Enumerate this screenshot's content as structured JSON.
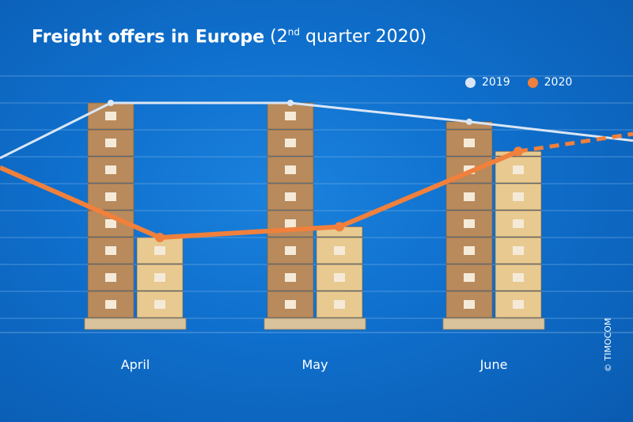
{
  "title": {
    "main": "Freight offers in Europe",
    "sub_prefix": " (2",
    "sub_sup": "nd",
    "sub_suffix": " quarter 2020)"
  },
  "copyright": "© TIMOCOM",
  "colors": {
    "series_2019": "#dbe6f4",
    "series_2020": "#f0803c",
    "box_2019": "#b88a5c",
    "box_2020": "#e8c98f",
    "grid": "#7fb2e6"
  },
  "chart_data": {
    "type": "line",
    "categories": [
      "April",
      "May",
      "June"
    ],
    "grid": true,
    "legend_position": "top-right",
    "series": [
      {
        "name": "2019",
        "values": [
          8,
          8,
          7.3
        ]
      },
      {
        "name": "2020",
        "values": [
          3,
          3.4,
          6.2
        ],
        "projection_dashed_after_last": true
      }
    ]
  }
}
